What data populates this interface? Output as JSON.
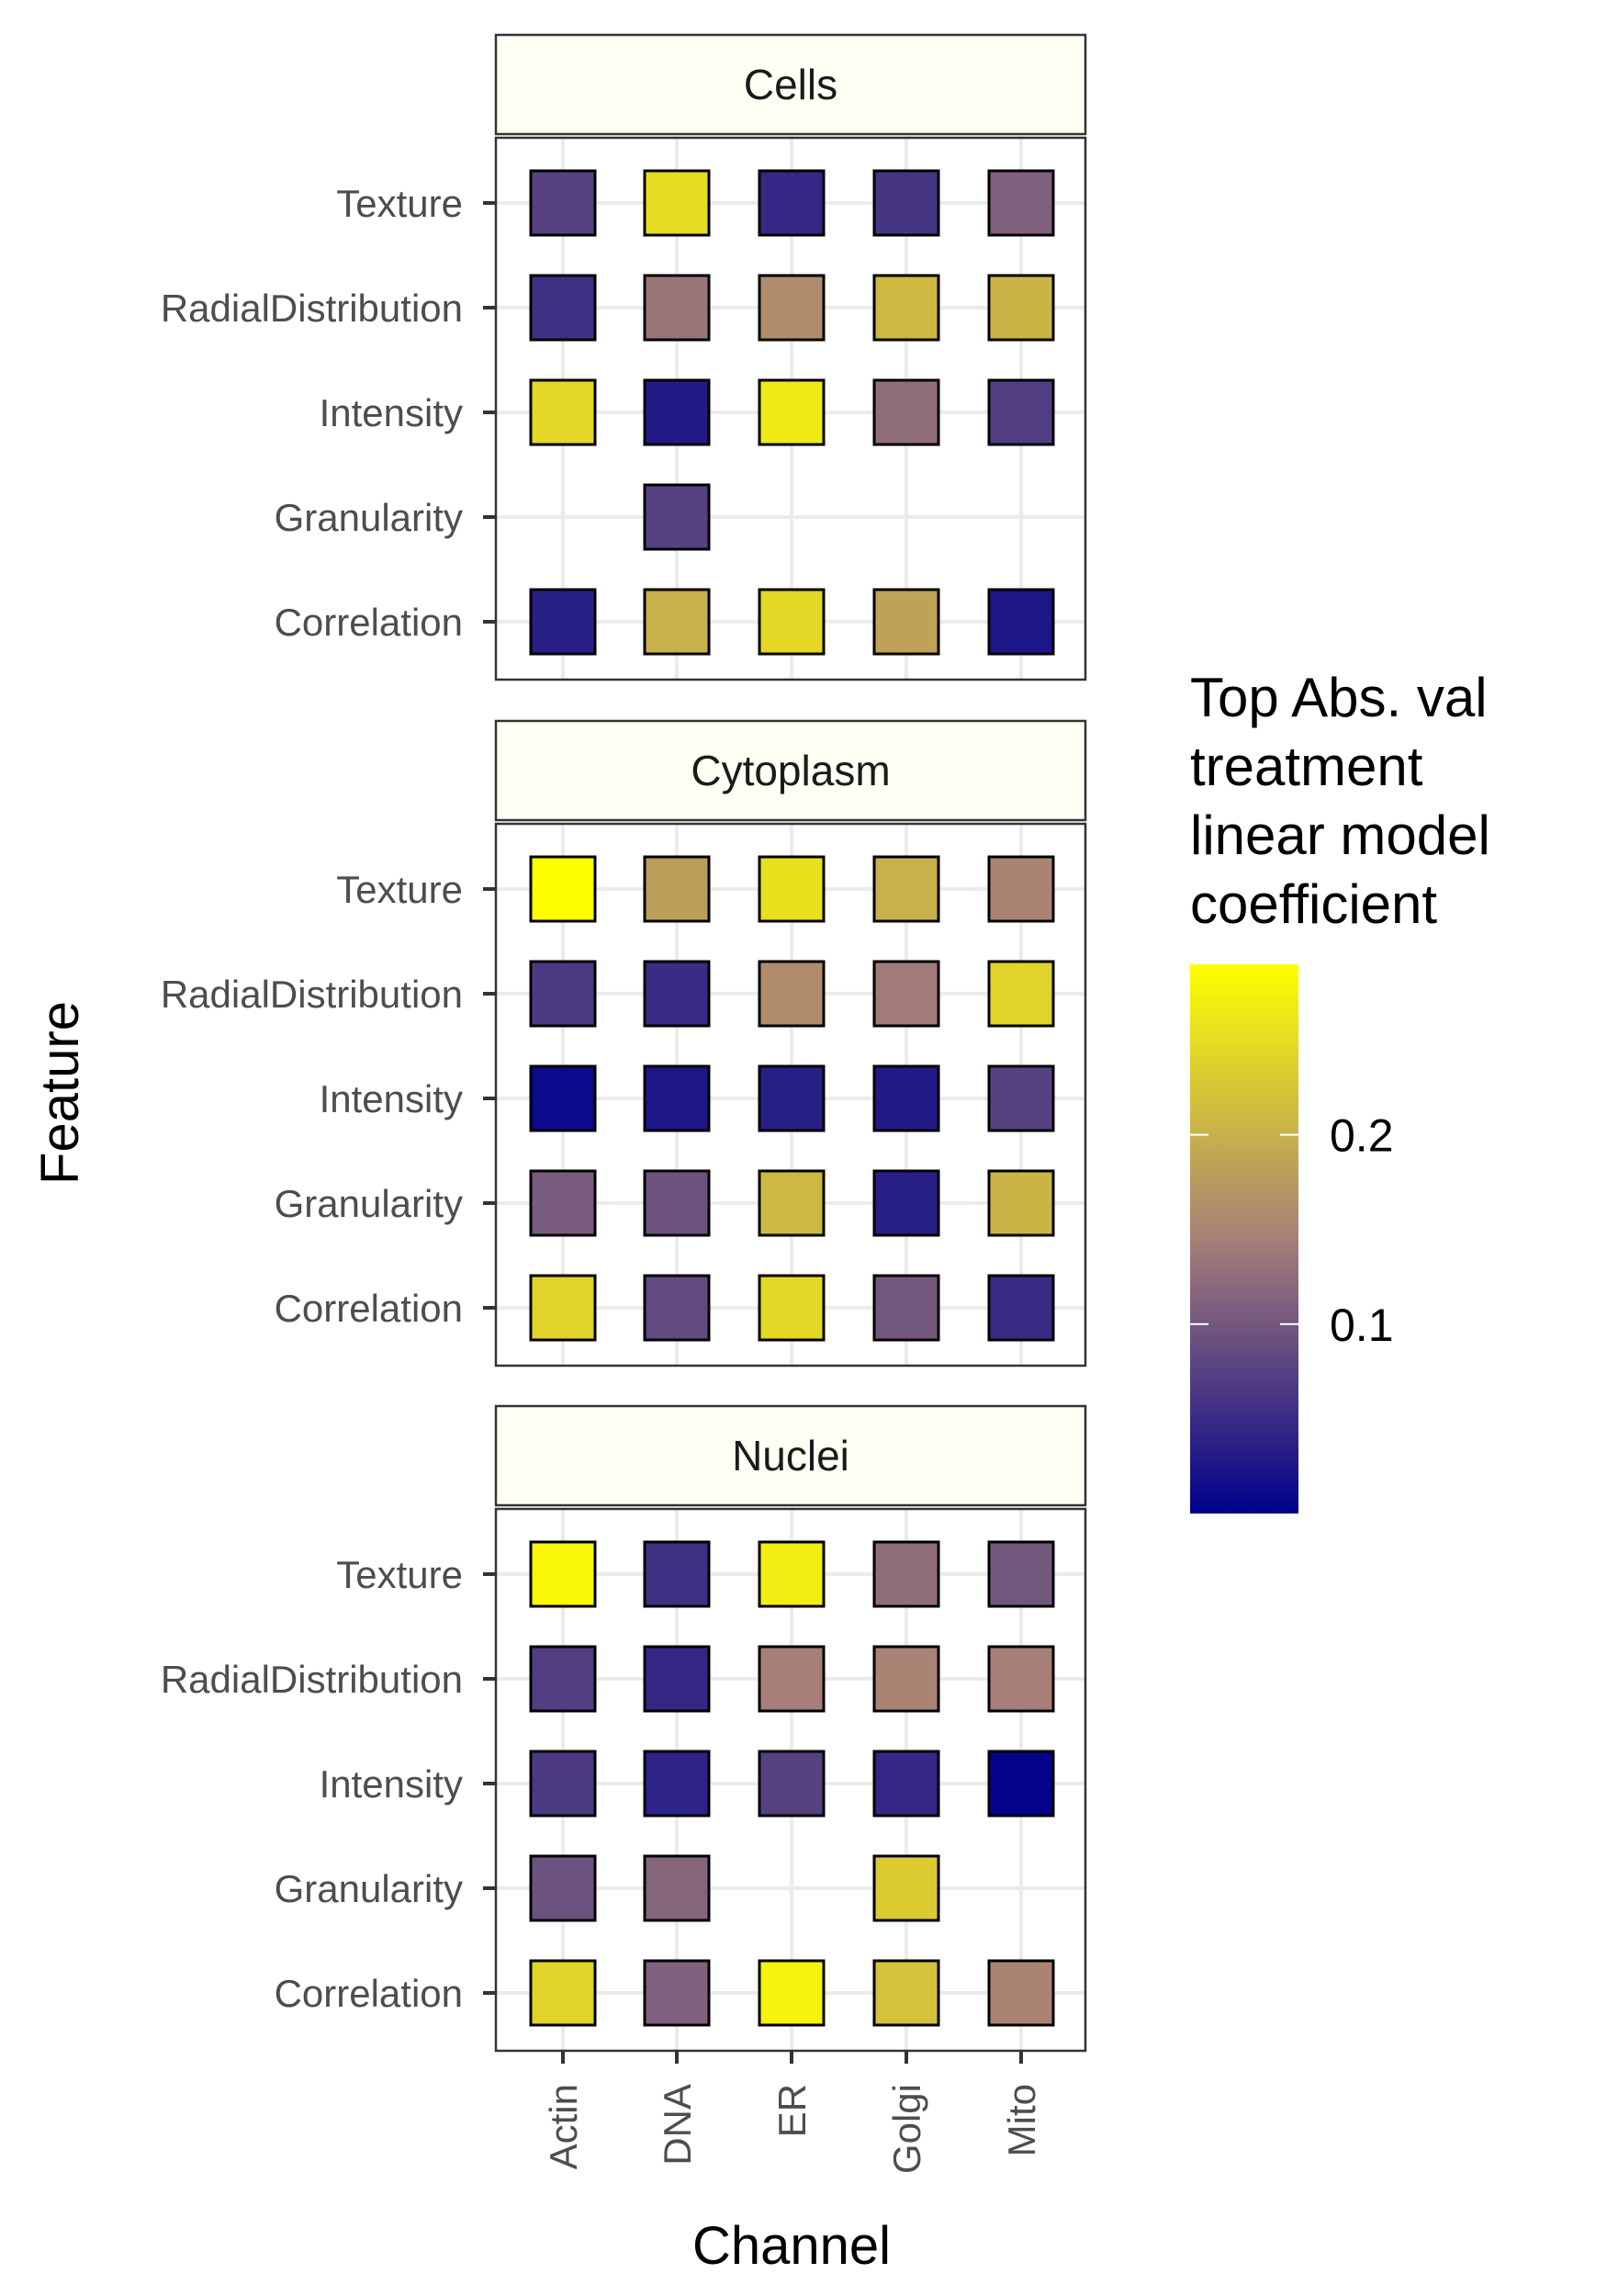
{
  "chart_data": {
    "type": "heatmap",
    "xlabel": "Channel",
    "ylabel": "Feature",
    "x_categories": [
      "Actin",
      "DNA",
      "ER",
      "Golgi",
      "Mito"
    ],
    "y_categories": [
      "Texture",
      "RadialDistribution",
      "Intensity",
      "Granularity",
      "Correlation"
    ],
    "color_scale": {
      "low": "#00008B",
      "mid": "#A77F78",
      "high": "#FFFF00",
      "range": [
        0.0,
        0.29
      ],
      "breaks": [
        0.1,
        0.2
      ],
      "break_labels": [
        "0.1",
        "0.2"
      ]
    },
    "legend": {
      "title_lines": [
        "Top Abs. val",
        "treatment",
        "linear model",
        "coefficient"
      ],
      "position": "right"
    },
    "grid": true,
    "facets": [
      {
        "name": "Cells",
        "values": [
          [
            0.075,
            0.25,
            0.045,
            0.06,
            0.11
          ],
          [
            0.055,
            0.135,
            0.16,
            0.21,
            0.205
          ],
          [
            0.245,
            0.03,
            0.265,
            0.125,
            0.07
          ],
          [
            null,
            0.075,
            null,
            null,
            null
          ],
          [
            0.035,
            0.2,
            0.245,
            0.185,
            0.025
          ]
        ]
      },
      {
        "name": "Cytoplasm",
        "values": [
          [
            0.29,
            0.18,
            0.255,
            0.2,
            0.15
          ],
          [
            0.065,
            0.05,
            0.16,
            0.14,
            0.24
          ],
          [
            0.01,
            0.025,
            0.035,
            0.03,
            0.075
          ],
          [
            0.105,
            0.095,
            0.21,
            0.035,
            0.205
          ],
          [
            0.24,
            0.085,
            0.245,
            0.1,
            0.05
          ]
        ]
      },
      {
        "name": "Nuclei",
        "values": [
          [
            0.28,
            0.055,
            0.27,
            0.125,
            0.1
          ],
          [
            0.07,
            0.045,
            0.145,
            0.15,
            0.145
          ],
          [
            0.065,
            0.04,
            0.075,
            0.045,
            0.003
          ],
          [
            0.095,
            0.115,
            null,
            0.23,
            null
          ],
          [
            0.24,
            0.11,
            0.275,
            0.22,
            0.15
          ]
        ]
      }
    ]
  }
}
